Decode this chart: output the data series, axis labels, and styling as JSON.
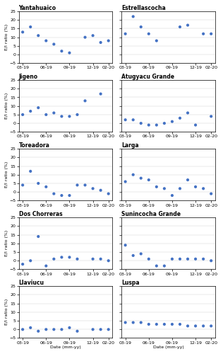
{
  "lakes": [
    {
      "name": "Yantahuaico",
      "x": [
        0,
        1,
        2,
        3,
        4,
        5,
        6,
        7,
        8,
        9,
        10,
        11
      ],
      "y": [
        13,
        16,
        11,
        8,
        6,
        2,
        1,
        null,
        10,
        11,
        7,
        8
      ]
    },
    {
      "name": "Estrellascocha",
      "x": [
        0,
        1,
        2,
        3,
        4,
        5,
        6,
        7,
        8,
        9,
        10,
        11
      ],
      "y": [
        12,
        22,
        16,
        12,
        8,
        null,
        null,
        16,
        17,
        null,
        12,
        12
      ]
    },
    {
      "name": "Jigeno",
      "x": [
        0,
        1,
        2,
        3,
        4,
        5,
        6,
        7,
        8,
        9,
        10,
        11
      ],
      "y": [
        5,
        7,
        9,
        5,
        6,
        4,
        4,
        5,
        13,
        null,
        17,
        null
      ]
    },
    {
      "name": "Atugyacu Grande",
      "x": [
        0,
        1,
        2,
        3,
        4,
        5,
        6,
        7,
        8,
        9,
        10,
        11
      ],
      "y": [
        2,
        2,
        0,
        -1,
        -1,
        0,
        1,
        3,
        6,
        -1,
        null,
        4
      ]
    },
    {
      "name": "Toreadora",
      "x": [
        0,
        1,
        2,
        3,
        4,
        5,
        6,
        7,
        8,
        9,
        10,
        11
      ],
      "y": [
        4,
        12,
        5,
        3,
        -1,
        -2,
        -2,
        4,
        4,
        2,
        1,
        -1
      ]
    },
    {
      "name": "Larga",
      "x": [
        0,
        1,
        2,
        3,
        4,
        5,
        6,
        7,
        8,
        9,
        10,
        11
      ],
      "y": [
        6,
        10,
        8,
        7,
        3,
        2,
        -2,
        2,
        7,
        3,
        2,
        -1
      ]
    },
    {
      "name": "Dos Chorreras",
      "x": [
        0,
        1,
        2,
        3,
        4,
        5,
        6,
        7,
        8,
        9,
        10,
        11
      ],
      "y": [
        -2,
        0,
        14,
        -3,
        1,
        2,
        2,
        1,
        null,
        1,
        1,
        0
      ]
    },
    {
      "name": "Sunincocha Grande",
      "x": [
        0,
        1,
        2,
        3,
        4,
        5,
        6,
        7,
        8,
        9,
        10,
        11
      ],
      "y": [
        9,
        3,
        4,
        1,
        -3,
        -3,
        1,
        1,
        1,
        1,
        1,
        0
      ]
    },
    {
      "name": "Llaviucu",
      "x": [
        0,
        1,
        2,
        3,
        4,
        5,
        6,
        7,
        8,
        9,
        10,
        11
      ],
      "y": [
        0,
        1,
        -1,
        0,
        0,
        0,
        1,
        -1,
        null,
        0,
        0,
        0
      ]
    },
    {
      "name": "Luspa",
      "x": [
        0,
        1,
        2,
        3,
        4,
        5,
        6,
        7,
        8,
        9,
        10,
        11
      ],
      "y": [
        4,
        4,
        4,
        3,
        3,
        3,
        3,
        3,
        2,
        2,
        2,
        2
      ]
    }
  ],
  "x_tick_labels": [
    "03-19",
    "06-19",
    "09-19",
    "12-19",
    "02-20"
  ],
  "x_tick_positions": [
    0,
    3,
    6,
    9,
    11
  ],
  "ylim": [
    -5,
    25
  ],
  "yticks": [
    -5,
    0,
    5,
    10,
    15,
    20,
    25
  ],
  "ylabel": "E/I ratio (%)",
  "xlabel": "Date (mm-yy)",
  "marker_color": "#4472C4",
  "marker_size": 3,
  "bg_color": "#ffffff",
  "title_fontsize": 5.5,
  "tick_fontsize": 4.5,
  "label_fontsize": 4.5
}
